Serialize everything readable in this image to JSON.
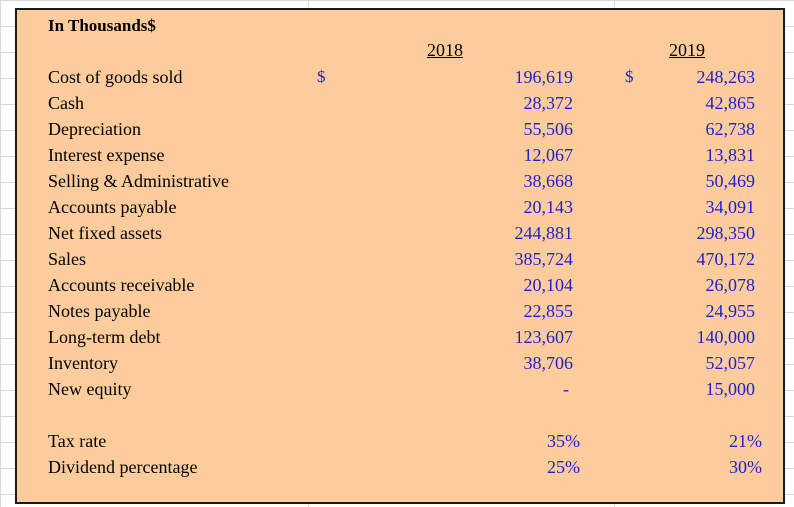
{
  "header": {
    "title": "In Thousands$",
    "year1": "2018",
    "year2": "2019",
    "currency": "$"
  },
  "rows": [
    {
      "label": "Cost of goods sold",
      "v2018": "196,619",
      "v2019": "248,263"
    },
    {
      "label": "Cash",
      "v2018": "28,372",
      "v2019": "42,865"
    },
    {
      "label": "Depreciation",
      "v2018": "55,506",
      "v2019": "62,738"
    },
    {
      "label": "Interest expense",
      "v2018": "12,067",
      "v2019": "13,831"
    },
    {
      "label": "Selling & Administrative",
      "v2018": "38,668",
      "v2019": "50,469"
    },
    {
      "label": "Accounts payable",
      "v2018": "20,143",
      "v2019": "34,091"
    },
    {
      "label": "Net fixed assets",
      "v2018": "244,881",
      "v2019": "298,350"
    },
    {
      "label": "Sales",
      "v2018": "385,724",
      "v2019": "470,172"
    },
    {
      "label": "Accounts receivable",
      "v2018": "20,104",
      "v2019": "26,078"
    },
    {
      "label": "Notes payable",
      "v2018": "22,855",
      "v2019": "24,955"
    },
    {
      "label": "Long-term debt",
      "v2018": "123,607",
      "v2019": "140,000"
    },
    {
      "label": "Inventory",
      "v2018": "38,706",
      "v2019": "52,057"
    },
    {
      "label": "New equity",
      "v2018": "-",
      "v2019": "15,000"
    }
  ],
  "rates": [
    {
      "label": "Tax rate",
      "v2018": "35%",
      "v2019": "21%"
    },
    {
      "label": "Dividend percentage",
      "v2018": "25%",
      "v2019": "30%"
    }
  ]
}
